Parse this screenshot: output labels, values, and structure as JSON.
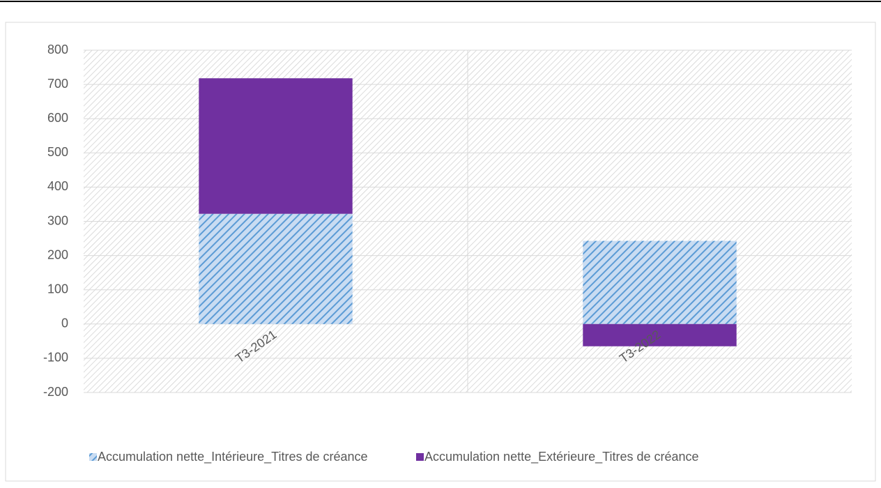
{
  "chart_data": {
    "type": "stacked_bar",
    "categories": [
      "T3-2021",
      "T3-2022"
    ],
    "series": [
      {
        "name": "Accumulation nette_Intérieure_Titres de créance",
        "color": "#5b9bd5",
        "pattern": "hatch",
        "values": [
          322,
          243
        ]
      },
      {
        "name": "Accumulation nette_Extérieure_Titres de créance",
        "color": "#7030a0",
        "values": [
          396,
          -65
        ]
      }
    ],
    "ylim": [
      -200,
      800
    ],
    "yticks": [
      -200,
      -100,
      0,
      100,
      200,
      300,
      400,
      500,
      600,
      700,
      800
    ],
    "grid": true,
    "legend": "bottom"
  }
}
